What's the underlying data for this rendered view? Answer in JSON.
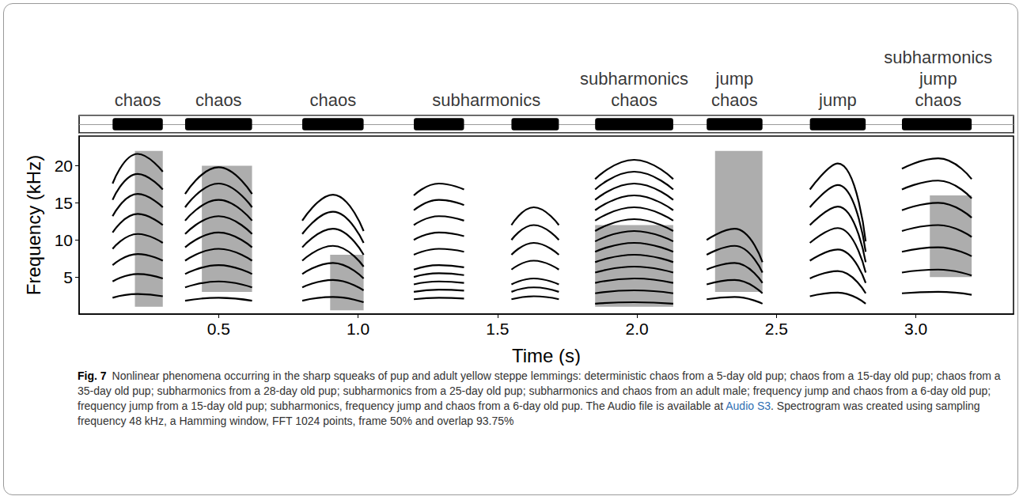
{
  "chart_data": {
    "type": "spectrogram",
    "xlabel": "Time (s)",
    "ylabel": "Frequency (kHz)",
    "xlim": [
      0,
      3.35
    ],
    "xticks": [
      0.5,
      {
        "value": 1,
        "label": "1.0"
      },
      1.5,
      {
        "value": 2,
        "label": "2.0"
      },
      2.5,
      {
        "value": 3,
        "label": "3.0"
      }
    ],
    "ylim": [
      0,
      24
    ],
    "yticks": [
      5,
      10,
      15,
      20
    ],
    "color": "#000000",
    "annotations": [
      {
        "x": 0.21,
        "text": [
          "chaos"
        ]
      },
      {
        "x": 0.5,
        "text": [
          "chaos"
        ]
      },
      {
        "x": 0.91,
        "text": [
          "chaos"
        ]
      },
      {
        "x": 1.46,
        "text": [
          "subharmonics"
        ]
      },
      {
        "x": 1.99,
        "text": [
          "subharmonics",
          "chaos"
        ]
      },
      {
        "x": 2.35,
        "text": [
          "jump",
          "chaos"
        ]
      },
      {
        "x": 2.72,
        "text": [
          "jump"
        ]
      },
      {
        "x": 3.08,
        "text": [
          "subharmonics",
          "jump",
          "chaos"
        ]
      }
    ],
    "calls": [
      {
        "t": [
          0.12,
          0.21,
          0.3
        ],
        "harmonics": [
          [
            2.2,
            2.7,
            2.4
          ],
          [
            4.4,
            5.4,
            4.8
          ],
          [
            6.6,
            8.1,
            7.2
          ],
          [
            8.8,
            10.8,
            9.6
          ],
          [
            11,
            13.5,
            12
          ],
          [
            13.2,
            16.2,
            14.4
          ],
          [
            15.4,
            18.9,
            16.8
          ],
          [
            17.6,
            21.6,
            19.2
          ]
        ],
        "chaos": [
          [
            0.2,
            0.3,
            1,
            22
          ]
        ]
      },
      {
        "t": [
          0.38,
          0.5,
          0.62
        ],
        "harmonics": [
          [
            1.8,
            2.2,
            1.8
          ],
          [
            3.6,
            4.4,
            3.6
          ],
          [
            5.4,
            6.6,
            5.4
          ],
          [
            7.2,
            8.8,
            7.2
          ],
          [
            9,
            11,
            9
          ],
          [
            10.8,
            13.2,
            10.8
          ],
          [
            12.6,
            15.4,
            12.6
          ],
          [
            14.4,
            17.6,
            14.4
          ],
          [
            16.2,
            19.8,
            16.2
          ]
        ],
        "chaos": [
          [
            0.44,
            0.62,
            3,
            20
          ]
        ]
      },
      {
        "t": [
          0.8,
          0.91,
          1.02
        ],
        "harmonics": [
          [
            1.8,
            2.3,
            1.6
          ],
          [
            3.6,
            4.6,
            3.2
          ],
          [
            5.4,
            6.9,
            4.8
          ],
          [
            7.2,
            9.2,
            6.4
          ],
          [
            9,
            11.5,
            8
          ],
          [
            10.8,
            13.8,
            9.6
          ],
          [
            12.6,
            16.1,
            11.2
          ]
        ],
        "chaos": [
          [
            0.9,
            1.02,
            0.5,
            8
          ]
        ]
      },
      {
        "t": [
          1.2,
          1.29,
          1.38
        ],
        "harmonics": [
          [
            2,
            2.2,
            2.1
          ],
          [
            3,
            3.3,
            3.15
          ],
          [
            4,
            4.4,
            4.2
          ],
          [
            5,
            5.5,
            5.25
          ],
          [
            6,
            6.6,
            6.3
          ],
          [
            8,
            8.8,
            8.4
          ],
          [
            10,
            11,
            10.5
          ],
          [
            12,
            13.2,
            12.6
          ],
          [
            14,
            15.4,
            14.7
          ],
          [
            16,
            17.6,
            16.8
          ]
        ],
        "chaos": []
      },
      {
        "t": [
          1.55,
          1.63,
          1.72
        ],
        "harmonics": [
          [
            2,
            2.4,
            2
          ],
          [
            3,
            3.6,
            3
          ],
          [
            4,
            4.8,
            4
          ],
          [
            6,
            7.2,
            6
          ],
          [
            8,
            9.6,
            8
          ],
          [
            10,
            12,
            10
          ],
          [
            12,
            14.4,
            12
          ]
        ],
        "chaos": []
      },
      {
        "t": [
          1.85,
          1.99,
          2.13
        ],
        "harmonics": [
          [
            1.4,
            1.6,
            1.4
          ],
          [
            2.8,
            3.2,
            2.8
          ],
          [
            4.2,
            4.8,
            4.2
          ],
          [
            5.6,
            6.4,
            5.6
          ],
          [
            7,
            8,
            7
          ],
          [
            8.4,
            9.6,
            8.4
          ],
          [
            9.8,
            11.2,
            9.8
          ],
          [
            11.2,
            12.8,
            11.2
          ],
          [
            12.6,
            14.4,
            12.6
          ],
          [
            14,
            16,
            14
          ],
          [
            15.4,
            17.6,
            15.4
          ],
          [
            16.8,
            19.2,
            16.8
          ],
          [
            18.2,
            20.8,
            18.2
          ]
        ],
        "chaos": [
          [
            1.85,
            2.13,
            1,
            12
          ]
        ]
      },
      {
        "t": [
          2.25,
          2.35,
          2.45
        ],
        "harmonics": [
          [
            2,
            2.3,
            1.4
          ],
          [
            4,
            4.6,
            2.8
          ],
          [
            6,
            6.9,
            4.2
          ],
          [
            8,
            9.2,
            5.6
          ],
          [
            10,
            11.5,
            7
          ]
        ],
        "chaos": [
          [
            2.28,
            2.45,
            3,
            22
          ]
        ]
      },
      {
        "t": [
          2.62,
          2.72,
          2.82
        ],
        "harmonics": [
          [
            2.4,
            2.9,
            1.4
          ],
          [
            4.8,
            5.8,
            2.8
          ],
          [
            7.2,
            8.7,
            4.2
          ],
          [
            9.6,
            11.6,
            5.6
          ],
          [
            12,
            14.5,
            7
          ],
          [
            14.4,
            17.4,
            8.4
          ],
          [
            16.8,
            20.3,
            9.8
          ]
        ],
        "chaos": []
      },
      {
        "t": [
          2.95,
          3.08,
          3.2
        ],
        "harmonics": [
          [
            2.8,
            3,
            2.6
          ],
          [
            5.6,
            6,
            5.2
          ],
          [
            8.4,
            9,
            7.8
          ],
          [
            11.2,
            12,
            10.4
          ],
          [
            14,
            15,
            13
          ],
          [
            16.8,
            18,
            15.6
          ],
          [
            19.6,
            21,
            18.2
          ]
        ],
        "chaos": [
          [
            3.05,
            3.2,
            5,
            16
          ]
        ]
      }
    ]
  },
  "caption": {
    "label": "Fig. 7",
    "text": "Nonlinear phenomena occurring in the sharp squeaks of pup and adult yellow steppe lemmings: deterministic chaos from a 5-day old pup; chaos from a 15-day old pup; chaos from a 35-day old pup; subharmonics from a 28-day old pup; subharmonics from a 25-day old pup; subharmonics and chaos from an adult male; frequency jump and chaos from a 6-day old pup; frequency jump from a 15-day old pup; subharmonics, frequency jump and chaos from a 6-day old pup. The Audio file is available at ",
    "link": "Audio S3",
    "text_after": ". Spectrogram was created using sampling frequency 48 kHz, a Hamming window, FFT 1024 points, frame 50% and overlap 93.75%"
  }
}
